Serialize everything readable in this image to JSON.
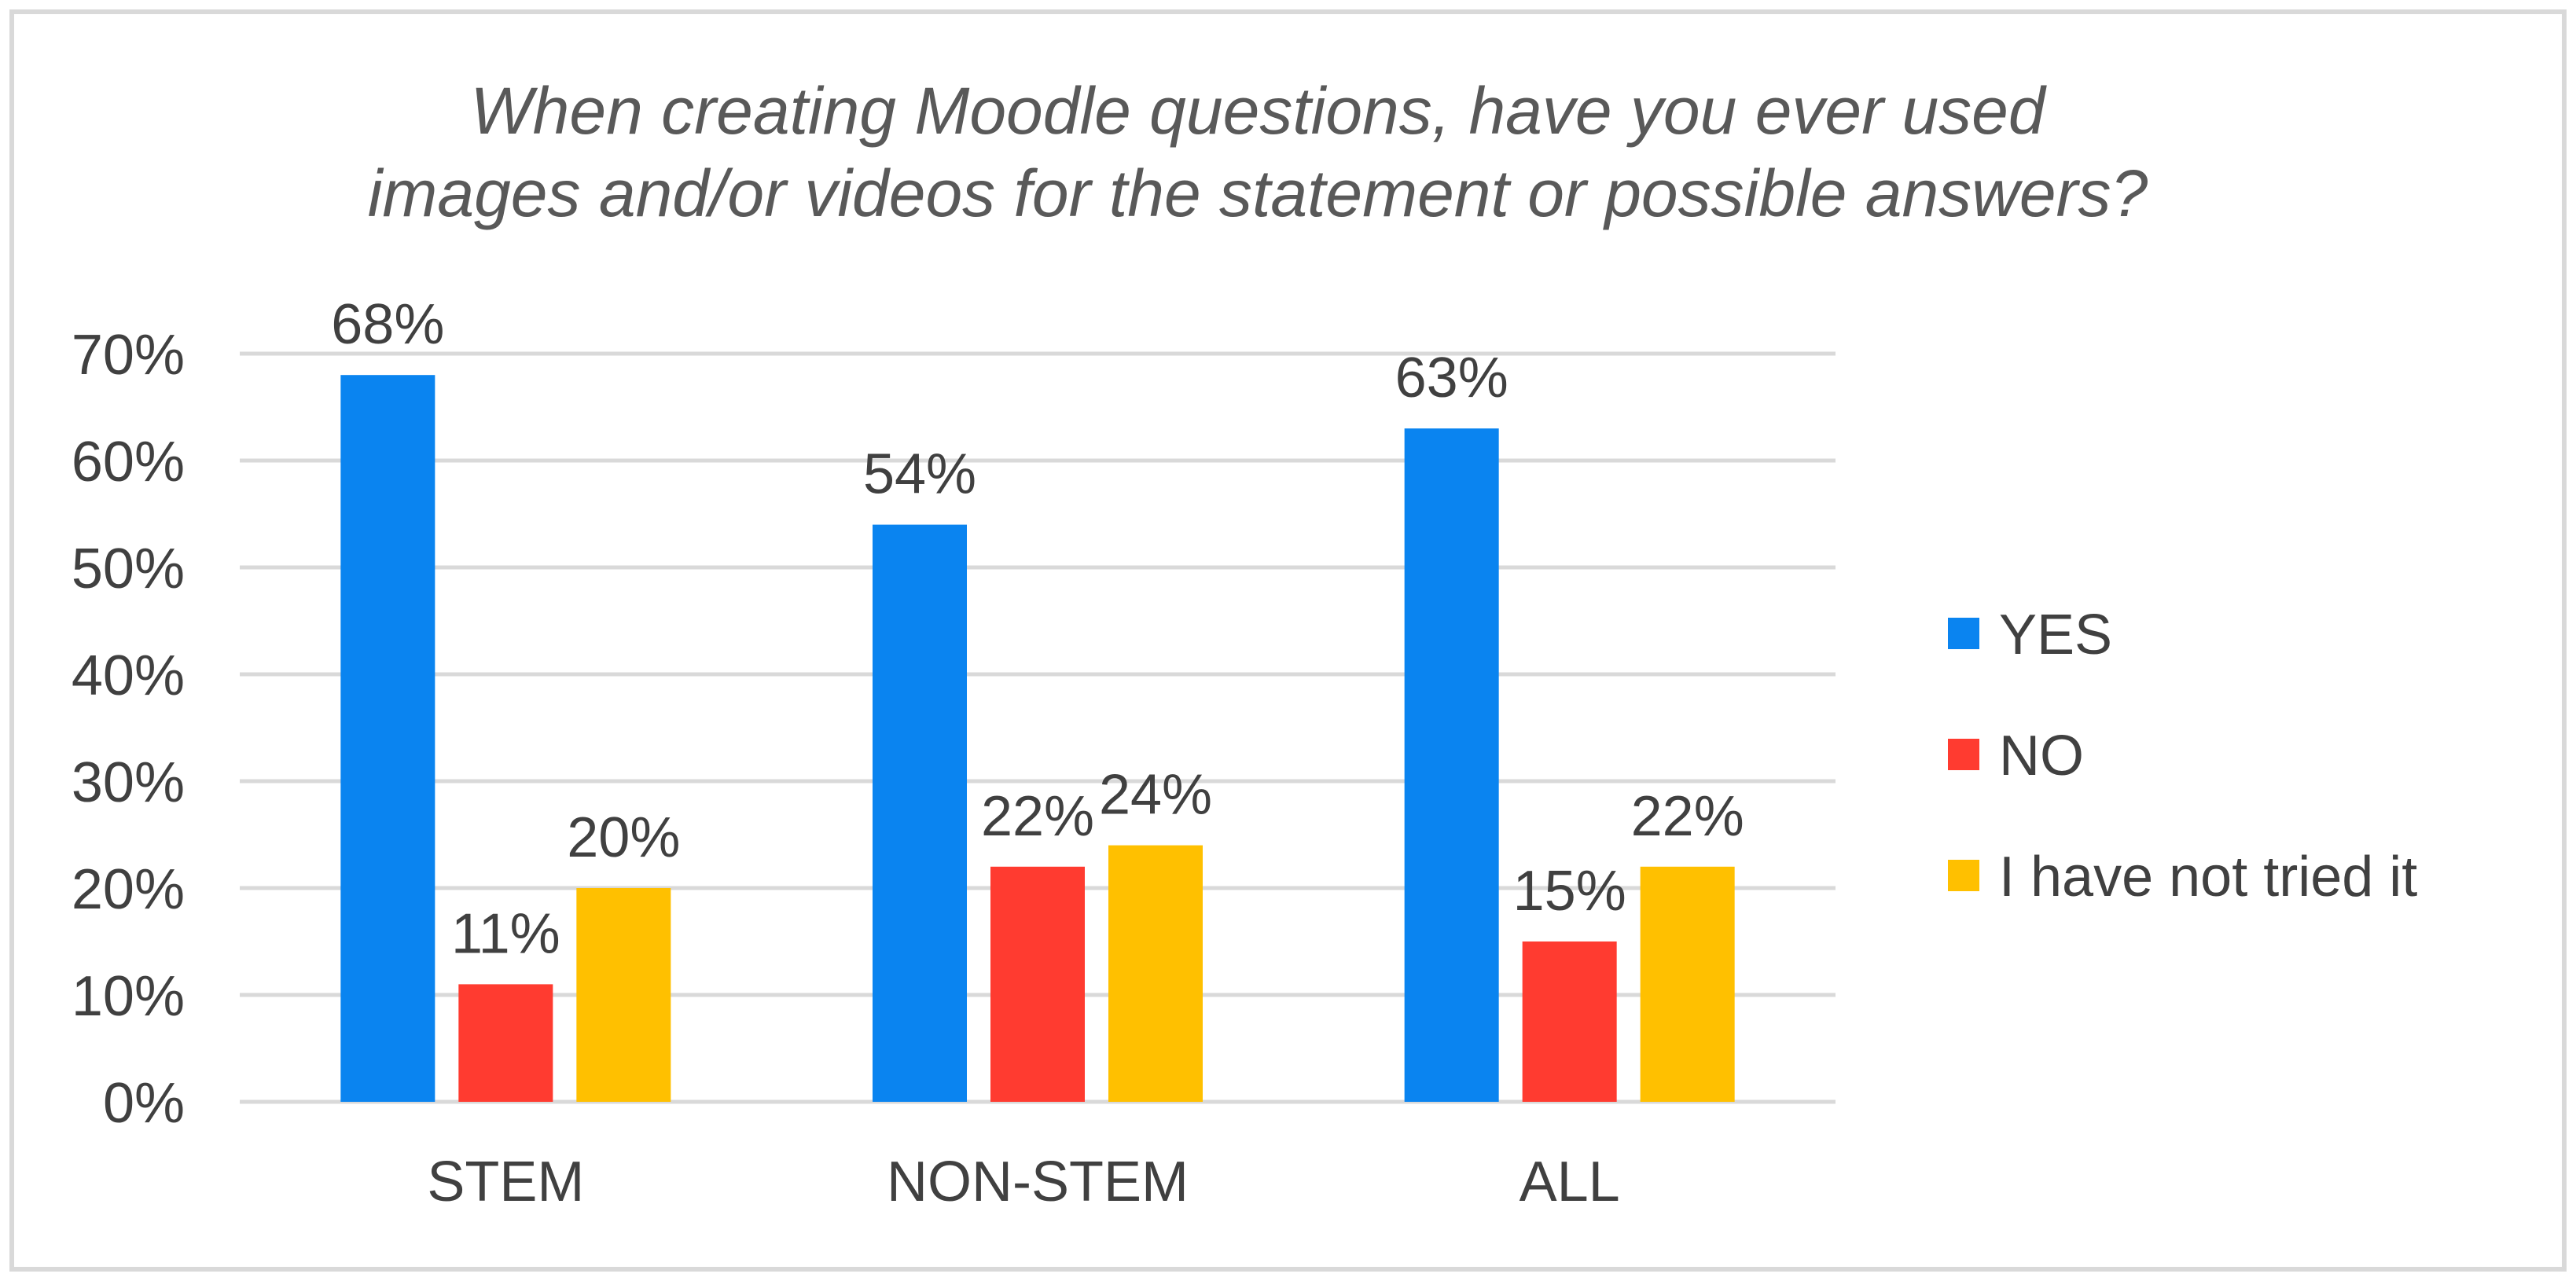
{
  "chart_data": {
    "type": "bar",
    "title_lines": [
      "When creating Moodle questions, have you ever used",
      "images and/or videos for the statement or possible answers?"
    ],
    "categories": [
      "STEM",
      "NON-STEM",
      "ALL"
    ],
    "series": [
      {
        "name": "YES",
        "values": [
          68,
          54,
          63
        ],
        "labels": [
          "68%",
          "54%",
          "63%"
        ],
        "color": "#0a84f0"
      },
      {
        "name": "NO",
        "values": [
          11,
          22,
          15
        ],
        "labels": [
          "11%",
          "22%",
          "15%"
        ],
        "color": "#ff3b30"
      },
      {
        "name": "I have not tried it",
        "values": [
          20,
          24,
          22
        ],
        "labels": [
          "20%",
          "24%",
          "22%"
        ],
        "color": "#ffc000"
      }
    ],
    "ylim": [
      0,
      70
    ],
    "yticks": [
      0,
      10,
      20,
      30,
      40,
      50,
      60,
      70
    ],
    "ytick_labels": [
      "0%",
      "10%",
      "20%",
      "30%",
      "40%",
      "50%",
      "60%",
      "70%"
    ],
    "grid": true,
    "legend_position": "right",
    "xlabel": "",
    "ylabel": ""
  }
}
